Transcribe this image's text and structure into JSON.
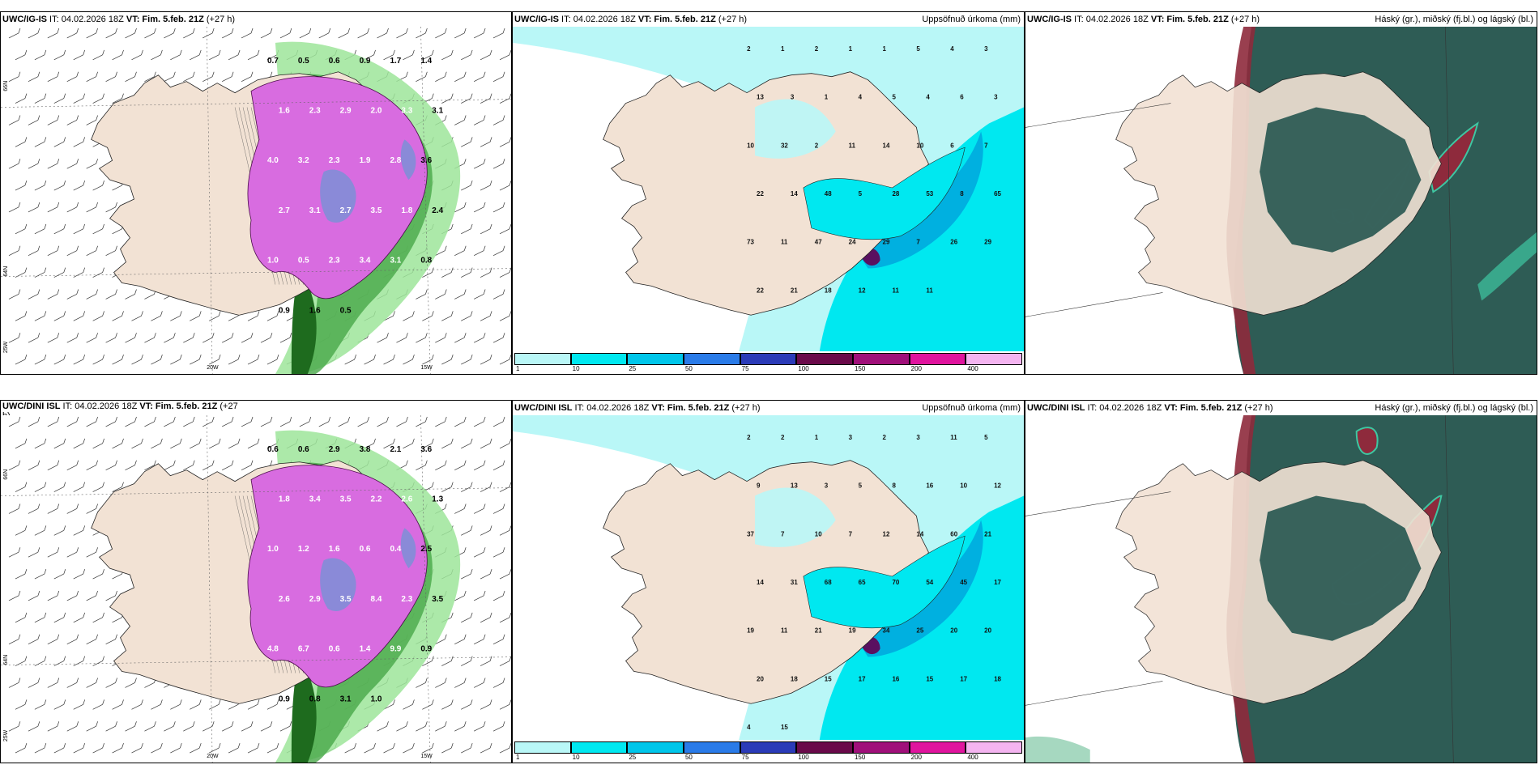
{
  "panels": [
    {
      "id": "p1",
      "type": "wind",
      "title_model": "UWC/IG-IS",
      "title_it": " IT: 04.02.2026 18Z ",
      "title_vt": "VT: Fim. 5.feb. 21Z",
      "title_rest": " (+27 h)",
      "right_label": "",
      "lat_labels": [
        "66N",
        "64N",
        "25W"
      ],
      "lon_labels": [
        "20W",
        "15W"
      ],
      "values": [
        "0.7",
        "0.5",
        "0.6",
        "0.9",
        "1.7",
        "1.4",
        "1.6",
        "2.3",
        "2.9",
        "2.0",
        "3.3",
        "3.1",
        "4.0",
        "3.2",
        "2.3",
        "1.9",
        "2.8",
        "3.6",
        "2.7",
        "3.1",
        "2.7",
        "3.5",
        "1.8",
        "2.4",
        "1.0",
        "0.5",
        "2.3",
        "3.4",
        "3.1",
        "0.8",
        "0.9",
        "1.6",
        "0.5"
      ]
    },
    {
      "id": "p2",
      "type": "precip",
      "title_model": "UWC/IG-IS",
      "title_it": " IT: 04.02.2026 18Z ",
      "title_vt": "VT: Fim. 5.feb. 21Z",
      "title_rest": " (+27 h)",
      "right_label": "Uppsöfnuð úrkoma (mm)",
      "values": [
        "2",
        "1",
        "2",
        "1",
        "1",
        "5",
        "4",
        "3",
        "13",
        "3",
        "1",
        "4",
        "5",
        "4",
        "6",
        "3",
        "10",
        "32",
        "2",
        "11",
        "14",
        "10",
        "6",
        "7",
        "22",
        "14",
        "48",
        "5",
        "28",
        "53",
        "8",
        "65",
        "73",
        "11",
        "47",
        "24",
        "29",
        "7",
        "26",
        "29",
        "22",
        "21",
        "18",
        "12",
        "11",
        "11"
      ]
    },
    {
      "id": "p3",
      "type": "cloud",
      "title_model": "UWC/IG-IS",
      "title_it": " IT: 04.02.2026 18Z ",
      "title_vt": "VT: Fim. 5.feb. 21Z",
      "title_rest": " (+27 h)",
      "right_label": "Háský (gr.), miðský (fj.bl.) og lágský (bl.)"
    },
    {
      "id": "p4",
      "type": "wind",
      "title_model": "UWC/DINI ISL",
      "title_it": " IT: 04.02.2026 18Z ",
      "title_vt": "VT: Fim. 5.feb. 21Z",
      "title_rest": " (+27",
      "right_label": "",
      "title_wrap": "h)",
      "lat_labels": [
        "66N",
        "64N",
        "25W"
      ],
      "lon_labels": [
        "20W",
        "15W"
      ],
      "values": [
        "0.6",
        "0.6",
        "2.9",
        "3.8",
        "2.1",
        "3.6",
        "1.8",
        "3.4",
        "3.5",
        "2.2",
        "2.6",
        "1.3",
        "1.0",
        "1.2",
        "1.6",
        "0.6",
        "0.4",
        "2.5",
        "2.6",
        "2.9",
        "3.5",
        "8.4",
        "2.3",
        "3.5",
        "4.8",
        "6.7",
        "0.6",
        "1.4",
        "9.9",
        "0.9",
        "0.9",
        "0.8",
        "3.1",
        "1.0"
      ]
    },
    {
      "id": "p5",
      "type": "precip",
      "title_model": "UWC/DINI ISL",
      "title_it": " IT: 04.02.2026 18Z ",
      "title_vt": "VT: Fim. 5.feb. 21Z",
      "title_rest": " (+27 h)",
      "right_label": "Uppsöfnuð úrkoma (mm)",
      "values": [
        "2",
        "2",
        "1",
        "3",
        "2",
        "3",
        "11",
        "5",
        "9",
        "13",
        "3",
        "5",
        "8",
        "16",
        "10",
        "12",
        "37",
        "7",
        "10",
        "7",
        "12",
        "14",
        "60",
        "21",
        "14",
        "31",
        "68",
        "65",
        "70",
        "54",
        "45",
        "17",
        "19",
        "11",
        "21",
        "19",
        "34",
        "25",
        "20",
        "20",
        "20",
        "18",
        "15",
        "17",
        "16",
        "15",
        "17",
        "18",
        "4",
        "15"
      ]
    },
    {
      "id": "p6",
      "type": "cloud",
      "title_model": "UWC/DINI ISL",
      "title_it": " IT: 04.02.2026 18Z ",
      "title_vt": "VT: Fim. 5.feb. 21Z",
      "title_rest": " (+27 h)",
      "right_label": "Háský (gr.), miðský (fj.bl.) og lágský (bl.)"
    }
  ],
  "colorbar": {
    "labels": [
      "1",
      "10",
      "25",
      "50",
      "75",
      "100",
      "150",
      "200",
      "400"
    ],
    "colors": [
      "#b9f7f7",
      "#00e8f0",
      "#00c6ea",
      "#2a7be8",
      "#2b3bb8",
      "#6a0a4a",
      "#a0107a",
      "#e0149e",
      "#f4b4f0"
    ]
  },
  "colors": {
    "land": "#f2e2d4",
    "precip_light": "#b9f7f7",
    "precip_mid": "#00e8f0",
    "wind_green": "#9ee59a",
    "wind_dark": "#1e6b1e",
    "wind_magenta": "#d86ce0",
    "cloud_dark": "#2e5c55",
    "cloud_red": "#8e2a3c",
    "cloud_teal": "#3ec7a2"
  }
}
